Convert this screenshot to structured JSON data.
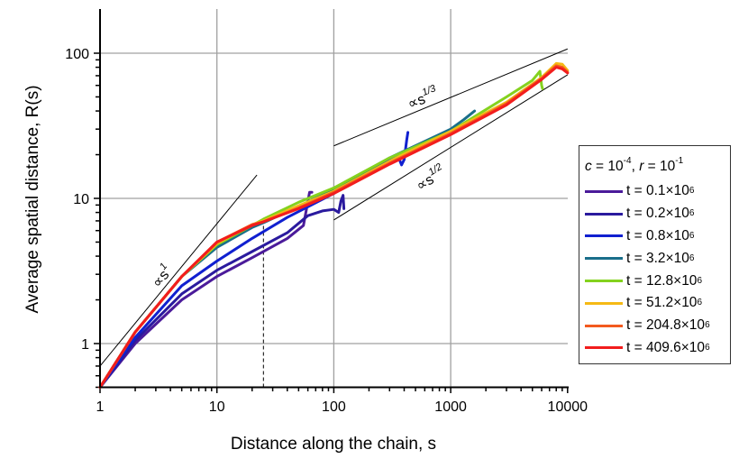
{
  "chart_data": {
    "type": "line",
    "title": "",
    "xlabel": "Distance along the chain, s",
    "ylabel": "Average spatial distance, R(s)",
    "xscale": "log",
    "yscale": "log",
    "xlim": [
      1,
      10000
    ],
    "ylim": [
      0.5,
      200
    ],
    "x_ticks": [
      "1",
      "10",
      "100",
      "1000",
      "10000"
    ],
    "y_ticks": [
      "1",
      "10",
      "100"
    ],
    "grid": true,
    "legend_position": "right, outside",
    "legend_title": "c = 10^-4, r = 10^-1",
    "series": [
      {
        "name": "t = 0.1×10^6",
        "color": "#4b1b9a",
        "x": [
          1,
          2,
          5,
          10,
          20,
          40,
          55,
          60,
          62,
          65
        ],
        "y": [
          0.5,
          1.0,
          2.0,
          2.9,
          3.9,
          5.3,
          6.5,
          9.5,
          11.0,
          11.0
        ]
      },
      {
        "name": "t = 0.2×10^6",
        "color": "#2a1a9e",
        "x": [
          1,
          2,
          5,
          10,
          20,
          40,
          60,
          80,
          100,
          110,
          115,
          120,
          122
        ],
        "y": [
          0.5,
          1.05,
          2.2,
          3.2,
          4.3,
          5.8,
          7.6,
          8.2,
          8.4,
          8.0,
          9.6,
          10.5,
          8.5
        ]
      },
      {
        "name": "t = 0.8×10^6",
        "color": "#1020d0",
        "x": [
          1,
          2,
          5,
          10,
          20,
          40,
          100,
          200,
          350,
          380,
          400,
          420,
          430
        ],
        "y": [
          0.5,
          1.1,
          2.5,
          3.7,
          5.3,
          7.4,
          10.8,
          15.5,
          20.0,
          17.0,
          18.5,
          25.0,
          28.5
        ]
      },
      {
        "name": "t = 3.2×10^6",
        "color": "#1a6e8a",
        "x": [
          1,
          2,
          5,
          10,
          20,
          25,
          50,
          100,
          300,
          1000,
          1300,
          1600
        ],
        "y": [
          0.5,
          1.2,
          2.9,
          4.6,
          6.3,
          6.8,
          8.8,
          11.5,
          19.0,
          30.0,
          35.0,
          40.0
        ]
      },
      {
        "name": "t = 12.8×10^6",
        "color": "#84d21e",
        "x": [
          1,
          2,
          5,
          10,
          20,
          25,
          50,
          100,
          300,
          1000,
          3000,
          5000,
          5800,
          6000,
          6100
        ],
        "y": [
          0.5,
          1.2,
          2.9,
          4.8,
          6.5,
          7.2,
          9.4,
          11.8,
          19.0,
          29.0,
          50.0,
          65.0,
          75.0,
          60.0,
          57.0
        ]
      },
      {
        "name": "t = 51.2×10^6",
        "color": "#f5b915",
        "x": [
          1,
          2,
          5,
          10,
          20,
          25,
          50,
          100,
          300,
          1000,
          3000,
          6000,
          8000,
          9000,
          10000
        ],
        "y": [
          0.5,
          1.2,
          2.9,
          4.9,
          6.6,
          7.0,
          8.9,
          11.2,
          18.0,
          29.0,
          46.0,
          68.0,
          85.0,
          84.0,
          76.0
        ]
      },
      {
        "name": "t = 204.8×10^6",
        "color": "#f35a1f",
        "x": [
          1,
          2,
          5,
          10,
          20,
          25,
          50,
          100,
          300,
          1000,
          3000,
          6000,
          8000,
          9000,
          10000
        ],
        "y": [
          0.5,
          1.2,
          2.9,
          5.0,
          6.6,
          6.9,
          8.6,
          11.0,
          17.5,
          28.0,
          45.0,
          67.0,
          82.0,
          80.0,
          74.0
        ]
      },
      {
        "name": "t = 409.6×10^6",
        "color": "#f21d1d",
        "x": [
          1,
          2,
          5,
          10,
          20,
          25,
          50,
          100,
          300,
          1000,
          3000,
          6000,
          8000,
          9000,
          10000
        ],
        "y": [
          0.5,
          1.2,
          2.9,
          5.0,
          6.5,
          6.9,
          8.5,
          10.8,
          17.2,
          27.5,
          44.0,
          66.0,
          80.0,
          78.0,
          73.0
        ]
      }
    ],
    "reference_lines": [
      {
        "label": "∝s^1",
        "slope": 1,
        "x": [
          1,
          22
        ],
        "y": [
          0.7,
          14.5
        ]
      },
      {
        "label": "∝s^1/3",
        "slope": 0.3333,
        "x": [
          100,
          10000
        ],
        "y": [
          23,
          107
        ]
      },
      {
        "label": "∝s^1/2",
        "slope": 0.5,
        "x": [
          100,
          10000
        ],
        "y": [
          7.1,
          71
        ]
      }
    ],
    "annotations": [
      {
        "type": "vertical-dashed-line",
        "x": 25,
        "y_from": 0.5,
        "y_to": 6.9
      }
    ]
  },
  "axes": {
    "x_title": "Distance along the chain, s",
    "y_title": "Average spatial distance, R(s)",
    "x_tick_labels": [
      "1",
      "10",
      "100",
      "1000",
      "10000"
    ],
    "y_tick_labels": [
      "1",
      "10",
      "100"
    ]
  },
  "annotations": {
    "s1": {
      "prefix": "∝s",
      "exp": "1"
    },
    "s13": {
      "prefix": "∝s",
      "exp": "1/3"
    },
    "s12": {
      "prefix": "∝s",
      "exp": "1/2"
    }
  },
  "legend": {
    "title_c": "c",
    "title_c_val": " = 10",
    "title_c_exp": "-4",
    "title_sep": ", ",
    "title_r": "r",
    "title_r_val": " = 10",
    "title_r_exp": "-1",
    "items": [
      {
        "prefix": "t = 0.1×10",
        "exp": "6",
        "color": "#4b1b9a"
      },
      {
        "prefix": "t = 0.2×10",
        "exp": "6",
        "color": "#2a1a9e"
      },
      {
        "prefix": "t = 0.8×10",
        "exp": "6",
        "color": "#1020d0"
      },
      {
        "prefix": "t = 3.2×10",
        "exp": "6",
        "color": "#1a6e8a"
      },
      {
        "prefix": "t = 12.8×10",
        "exp": "6",
        "color": "#84d21e"
      },
      {
        "prefix": "t = 51.2×10",
        "exp": "6",
        "color": "#f5b915"
      },
      {
        "prefix": "t = 204.8×10",
        "exp": "6",
        "color": "#f35a1f"
      },
      {
        "prefix": "t = 409.6×10",
        "exp": "6",
        "color": "#f21d1d"
      }
    ]
  }
}
